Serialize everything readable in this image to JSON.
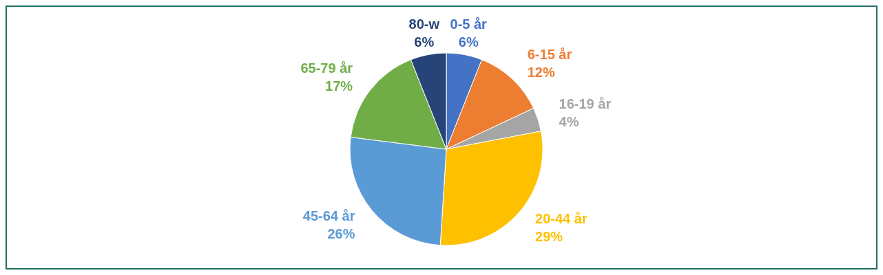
{
  "chart_data": {
    "type": "pie",
    "categories": [
      "0-5 år",
      "6-15 år",
      "16-19 år",
      "20-44 år",
      "45-64 år",
      "65-79 år",
      "80-w"
    ],
    "values": [
      6,
      12,
      4,
      29,
      26,
      17,
      6
    ],
    "value_labels": [
      "6%",
      "12%",
      "4%",
      "29%",
      "26%",
      "17%",
      "6%"
    ],
    "colors": [
      "#4472c4",
      "#ed7d31",
      "#a5a5a5",
      "#ffc000",
      "#5b9bd5",
      "#70ad47",
      "#264478"
    ],
    "legend": false
  }
}
